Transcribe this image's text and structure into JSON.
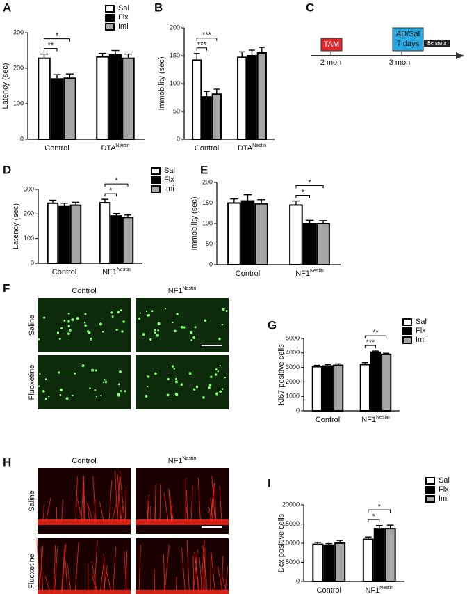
{
  "panel_labels": [
    "A",
    "B",
    "C",
    "D",
    "E",
    "F",
    "G",
    "H",
    "I"
  ],
  "chart_data": [
    {
      "type": "bar",
      "ylabel": "Latency (sec)",
      "categories": [
        "Control",
        "DTA"
      ],
      "category_superscripts": [
        null,
        "Nestin"
      ],
      "series": [
        {
          "name": "Sal",
          "color": "#ffffff",
          "values": [
            228,
            232
          ],
          "errors": [
            12,
            10
          ]
        },
        {
          "name": "Flx",
          "color": "#000000",
          "values": [
            170,
            238
          ],
          "errors": [
            12,
            12
          ]
        },
        {
          "name": "Imi",
          "color": "#a6a6a6",
          "values": [
            172,
            228
          ],
          "errors": [
            12,
            12
          ]
        }
      ],
      "ylim": [
        0,
        300
      ],
      "yticks": [
        0,
        100,
        200,
        300
      ],
      "legend": true,
      "brackets": [
        {
          "label": "**",
          "category": 0,
          "bars": [
            0,
            1
          ]
        },
        {
          "label": "*",
          "category": 0,
          "bars": [
            0,
            2
          ]
        }
      ]
    },
    {
      "type": "bar",
      "ylabel": "Immobility (sec)",
      "categories": [
        "Control",
        "DTA"
      ],
      "category_superscripts": [
        null,
        "Nestin"
      ],
      "series": [
        {
          "name": "Sal",
          "color": "#ffffff",
          "values": [
            142,
            147
          ],
          "errors": [
            12,
            10
          ]
        },
        {
          "name": "Flx",
          "color": "#000000",
          "values": [
            76,
            150
          ],
          "errors": [
            10,
            10
          ]
        },
        {
          "name": "Imi",
          "color": "#a6a6a6",
          "values": [
            81,
            155
          ],
          "errors": [
            9,
            10
          ]
        }
      ],
      "ylim": [
        0,
        200
      ],
      "yticks": [
        0,
        50,
        100,
        150,
        200
      ],
      "legend": false,
      "brackets": [
        {
          "label": "***",
          "category": 0,
          "bars": [
            0,
            1
          ]
        },
        {
          "label": "***",
          "category": 0,
          "bars": [
            0,
            2
          ]
        }
      ]
    },
    {
      "type": "bar",
      "ylabel": "Latency (sec)",
      "categories": [
        "Control",
        "NF1"
      ],
      "category_superscripts": [
        null,
        "Nestin"
      ],
      "series": [
        {
          "name": "Sal",
          "color": "#ffffff",
          "values": [
            244,
            246
          ],
          "errors": [
            12,
            14
          ]
        },
        {
          "name": "Flx",
          "color": "#000000",
          "values": [
            230,
            192
          ],
          "errors": [
            14,
            10
          ]
        },
        {
          "name": "Imi",
          "color": "#a6a6a6",
          "values": [
            236,
            186
          ],
          "errors": [
            12,
            10
          ]
        }
      ],
      "ylim": [
        0,
        300
      ],
      "yticks": [
        0,
        100,
        200,
        300
      ],
      "legend": true,
      "brackets": [
        {
          "label": "*",
          "category": 1,
          "bars": [
            0,
            1
          ]
        },
        {
          "label": "*",
          "category": 1,
          "bars": [
            0,
            2
          ]
        }
      ]
    },
    {
      "type": "bar",
      "ylabel": "Immobility (sec)",
      "categories": [
        "Control",
        "NF1"
      ],
      "category_superscripts": [
        null,
        "Nestin"
      ],
      "series": [
        {
          "name": "Sal",
          "color": "#ffffff",
          "values": [
            150,
            145
          ],
          "errors": [
            10,
            10
          ]
        },
        {
          "name": "Flx",
          "color": "#000000",
          "values": [
            155,
            100
          ],
          "errors": [
            15,
            8
          ]
        },
        {
          "name": "Imi",
          "color": "#a6a6a6",
          "values": [
            148,
            100
          ],
          "errors": [
            10,
            7
          ]
        }
      ],
      "ylim": [
        0,
        200
      ],
      "yticks": [
        0,
        50,
        100,
        150,
        200
      ],
      "legend": false,
      "brackets": [
        {
          "label": "*",
          "category": 1,
          "bars": [
            0,
            1
          ]
        },
        {
          "label": "*",
          "category": 1,
          "bars": [
            0,
            2
          ]
        }
      ]
    },
    {
      "type": "bar",
      "ylabel": "Ki67 positive cells",
      "categories": [
        "Control",
        "NF1"
      ],
      "category_superscripts": [
        null,
        "Nestin"
      ],
      "series": [
        {
          "name": "Sal",
          "color": "#ffffff",
          "values": [
            3050,
            3200
          ],
          "errors": [
            100,
            130
          ]
        },
        {
          "name": "Flx",
          "color": "#000000",
          "values": [
            3100,
            4050
          ],
          "errors": [
            100,
            80
          ]
        },
        {
          "name": "Imi",
          "color": "#a6a6a6",
          "values": [
            3150,
            3900
          ],
          "errors": [
            100,
            80
          ]
        }
      ],
      "ylim": [
        0,
        5000
      ],
      "yticks": [
        0,
        1000,
        2000,
        3000,
        4000,
        5000
      ],
      "legend": true,
      "brackets": [
        {
          "label": "***",
          "category": 1,
          "bars": [
            0,
            1
          ]
        },
        {
          "label": "**",
          "category": 1,
          "bars": [
            0,
            2
          ]
        }
      ]
    },
    {
      "type": "bar",
      "ylabel": "Dcx positive cells",
      "categories": [
        "Control",
        "NF1"
      ],
      "category_superscripts": [
        null,
        "Nestin"
      ],
      "series": [
        {
          "name": "Sal",
          "color": "#ffffff",
          "values": [
            9700,
            11000
          ],
          "errors": [
            500,
            600
          ]
        },
        {
          "name": "Flx",
          "color": "#000000",
          "values": [
            9500,
            13800
          ],
          "errors": [
            400,
            800
          ]
        },
        {
          "name": "Imi",
          "color": "#a6a6a6",
          "values": [
            10000,
            13800
          ],
          "errors": [
            700,
            900
          ]
        }
      ],
      "ylim": [
        0,
        20000
      ],
      "yticks": [
        0,
        5000,
        10000,
        15000,
        20000
      ],
      "legend": true,
      "brackets": [
        {
          "label": "*",
          "category": 1,
          "bars": [
            0,
            1
          ]
        },
        {
          "label": "*",
          "category": 1,
          "bars": [
            0,
            2
          ]
        }
      ]
    }
  ],
  "timeline": {
    "events": [
      "TAM",
      "AD/Sal",
      "7 days",
      "Behavior"
    ],
    "times": [
      "2 mon",
      "3 mon"
    ]
  },
  "micrographs": [
    {
      "columns": [
        "Control",
        "NF1"
      ],
      "column_superscripts": [
        null,
        "Nestin"
      ],
      "rows": [
        "Saline",
        "Fluoxetine"
      ]
    },
    {
      "columns": [
        "Control",
        "NF1"
      ],
      "column_superscripts": [
        null,
        "Nestin"
      ],
      "rows": [
        "Saline",
        "Fluoxetine"
      ]
    }
  ]
}
